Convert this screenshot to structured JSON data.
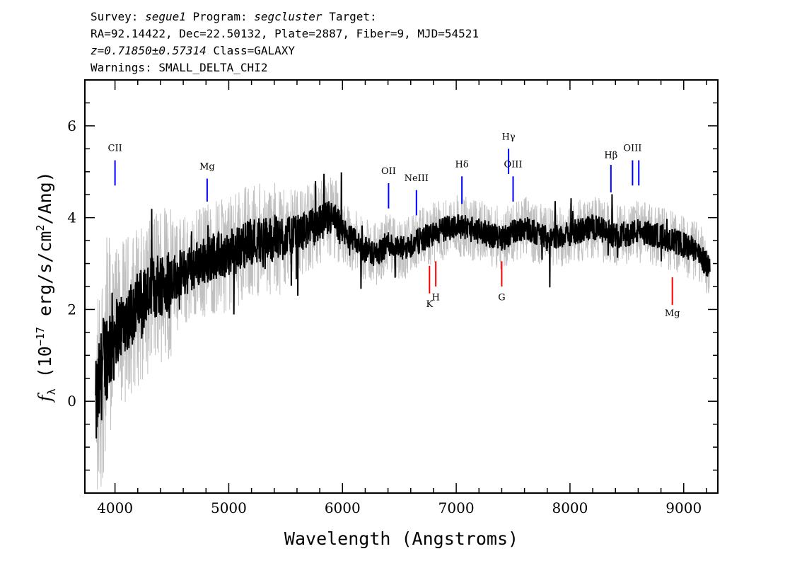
{
  "header": {
    "survey_label": "Survey:",
    "survey": "segue1",
    "program_label": "Program:",
    "program": "segcluster",
    "target_label": "Target:",
    "line2": "RA=92.14422, Dec=22.50132, Plate=2887, Fiber=9, MJD=54521",
    "z_text": "z=0.71850±0.57314",
    "class_text": "Class=GALAXY",
    "warnings": "Warnings: SMALL_DELTA_CHI2"
  },
  "chart_data": {
    "type": "line",
    "xlabel": "Wavelength (Angstroms)",
    "ylabel_main": "f",
    "ylabel_sub": "λ",
    "ylabel_rest": " (10",
    "ylabel_exp": "−17",
    "ylabel_rest2": " erg/s/cm",
    "ylabel_exp2": "2",
    "ylabel_rest3": "/Ang)",
    "xlim": [
      3735,
      9300
    ],
    "ylim": [
      -2.0,
      7.0
    ],
    "xticks": [
      4000,
      5000,
      6000,
      7000,
      8000,
      9000
    ],
    "xtick_labels": [
      "4000",
      "5000",
      "6000",
      "7000",
      "8000",
      "9000"
    ],
    "yticks": [
      0,
      2,
      4,
      6
    ],
    "ytick_labels": [
      "0",
      "2",
      "4",
      "6"
    ],
    "grid": false,
    "colors": {
      "flux": "#000000",
      "error_band": "#c0c0c0",
      "emission": "#0000ff",
      "absorption": "#ff0000"
    },
    "spectrum_anchor": {
      "x": [
        3830,
        3900,
        4000,
        4200,
        4400,
        4600,
        4800,
        5000,
        5200,
        5400,
        5600,
        5800,
        5900,
        6000,
        6200,
        6300,
        6400,
        6500,
        6600,
        6800,
        7000,
        7200,
        7400,
        7600,
        7800,
        8000,
        8200,
        8400,
        8600,
        8800,
        9000,
        9100,
        9230
      ],
      "y": [
        -0.2,
        0.9,
        1.5,
        2.1,
        2.6,
        2.8,
        3.1,
        3.2,
        3.5,
        3.55,
        3.65,
        3.85,
        4.0,
        3.7,
        3.3,
        3.2,
        3.45,
        3.3,
        3.4,
        3.65,
        3.85,
        3.7,
        3.55,
        3.8,
        3.55,
        3.65,
        3.8,
        3.6,
        3.7,
        3.6,
        3.4,
        3.3,
        2.9
      ]
    },
    "emission_lines": [
      {
        "name": "CII",
        "wavelength": 4000,
        "y_top": 5.25,
        "y_bottom": 4.7,
        "label_y": 5.45
      },
      {
        "name": "Mg",
        "wavelength": 4810,
        "y_top": 4.85,
        "y_bottom": 4.35,
        "label_y": 5.05
      },
      {
        "name": "OII",
        "wavelength": 6405,
        "y_top": 4.75,
        "y_bottom": 4.2,
        "label_y": 4.95
      },
      {
        "name": "NeIII",
        "wavelength": 6650,
        "y_top": 4.6,
        "y_bottom": 4.05,
        "label_y": 4.8
      },
      {
        "name": "Hδ",
        "wavelength": 7050,
        "y_top": 4.9,
        "y_bottom": 4.3,
        "label_y": 5.1
      },
      {
        "name": "Hγ",
        "wavelength": 7460,
        "y_top": 5.5,
        "y_bottom": 4.95,
        "label_y": 5.7
      },
      {
        "name": "OIII",
        "wavelength": 7500,
        "y_top": 4.9,
        "y_bottom": 4.35,
        "label_y": 5.1
      },
      {
        "name": "Hβ",
        "wavelength": 8360,
        "y_top": 5.15,
        "y_bottom": 4.55,
        "label_y": 5.3
      },
      {
        "name": "OIII",
        "wavelength": 8550,
        "y_top": 5.25,
        "y_bottom": 4.7,
        "label_y": 5.45
      },
      {
        "name": "",
        "wavelength": 8605,
        "y_top": 5.25,
        "y_bottom": 4.7,
        "label_y": 5.45
      }
    ],
    "absorption_lines": [
      {
        "name": "K",
        "wavelength": 6765,
        "y_top": 2.95,
        "y_bottom": 2.35,
        "label_y": 2.05
      },
      {
        "name": "H",
        "wavelength": 6820,
        "y_top": 3.05,
        "y_bottom": 2.5,
        "label_y": 2.2
      },
      {
        "name": "G",
        "wavelength": 7400,
        "y_top": 3.05,
        "y_bottom": 2.5,
        "label_y": 2.2
      },
      {
        "name": "Mg",
        "wavelength": 8900,
        "y_top": 2.7,
        "y_bottom": 2.1,
        "label_y": 1.85
      }
    ]
  }
}
